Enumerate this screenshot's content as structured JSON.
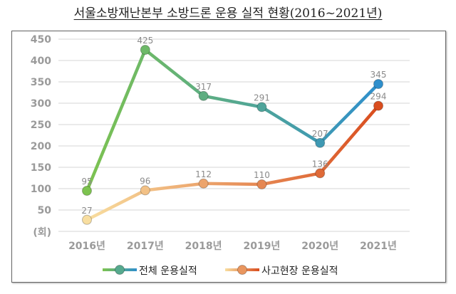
{
  "chart_data": {
    "type": "line",
    "title": "서울소방재난본부 소방드론 운용 실적 현황(2016~2021년)",
    "ylabel": "(회)",
    "categories": [
      "2016년",
      "2017년",
      "2018년",
      "2019년",
      "2020년",
      "2021년"
    ],
    "yticks": [
      "50",
      "100",
      "150",
      "200",
      "250",
      "300",
      "350",
      "400",
      "450"
    ],
    "ylim": [
      0,
      450
    ],
    "grid": true,
    "legend_position": "bottom",
    "series": [
      {
        "name": "전체 운용실적",
        "values": [
          95,
          425,
          317,
          291,
          207,
          345
        ],
        "colors": [
          "#7dc34f",
          "#2f8fcc"
        ]
      },
      {
        "name": "사고현장 운용실적",
        "values": [
          27,
          96,
          112,
          110,
          136,
          294
        ],
        "colors": [
          "#f8dea0",
          "#d94d1e"
        ]
      }
    ]
  }
}
